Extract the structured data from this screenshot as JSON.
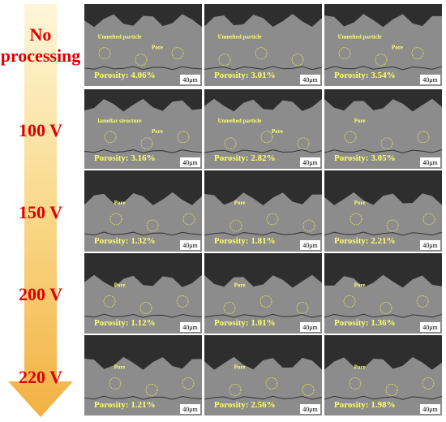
{
  "row_labels": [
    "No processing",
    "100 V",
    "150 V",
    "200 V",
    "220 V"
  ],
  "rows": [
    {
      "cells": [
        {
          "porosity": "Porosity: 4.06%",
          "scale_bar": "40μm",
          "annotations": [
            "Unmelted particle",
            "Pore"
          ]
        },
        {
          "porosity": "Porosity: 3.01%",
          "scale_bar": "40μm",
          "annotations": [
            "Unmelted particle"
          ]
        },
        {
          "porosity": "Porosity: 3.54%",
          "scale_bar": "40μm",
          "annotations": [
            "Unmelted particle",
            "Pore"
          ]
        }
      ]
    },
    {
      "cells": [
        {
          "porosity": "Porosity: 3.16%",
          "scale_bar": "40μm",
          "annotations": [
            "lamellar structure",
            "Pore"
          ]
        },
        {
          "porosity": "Porosity: 2.82%",
          "scale_bar": "40μm",
          "annotations": [
            "Unmelted particle",
            "Pore"
          ]
        },
        {
          "porosity": "Porosity: 3.05%",
          "scale_bar": "40μm",
          "annotations": [
            "Pore"
          ]
        }
      ]
    },
    {
      "cells": [
        {
          "porosity": "Porosity: 1.32%",
          "scale_bar": "40μm",
          "annotations": [
            "Pore"
          ]
        },
        {
          "porosity": "Porosity: 1.81%",
          "scale_bar": "40μm",
          "annotations": [
            "Pore"
          ]
        },
        {
          "porosity": "Porosity: 2.21%",
          "scale_bar": "40μm",
          "annotations": [
            "Pore"
          ]
        }
      ]
    },
    {
      "cells": [
        {
          "porosity": "Porosity: 1.12%",
          "scale_bar": "40μm",
          "annotations": [
            "Pore"
          ]
        },
        {
          "porosity": "Porosity: 1.01%",
          "scale_bar": "40μm",
          "annotations": [
            "Pore"
          ]
        },
        {
          "porosity": "Porosity: 1.36%",
          "scale_bar": "40μm",
          "annotations": [
            "Pore"
          ]
        }
      ]
    },
    {
      "cells": [
        {
          "porosity": "Porosity: 1.21%",
          "scale_bar": "40μm",
          "annotations": [
            "Pore"
          ]
        },
        {
          "porosity": "Porosity: 2.56%",
          "scale_bar": "40μm",
          "annotations": [
            "Pore"
          ]
        },
        {
          "porosity": "Porosity: 1.98%",
          "scale_bar": "40μm",
          "annotations": [
            "Pore"
          ]
        }
      ]
    }
  ]
}
